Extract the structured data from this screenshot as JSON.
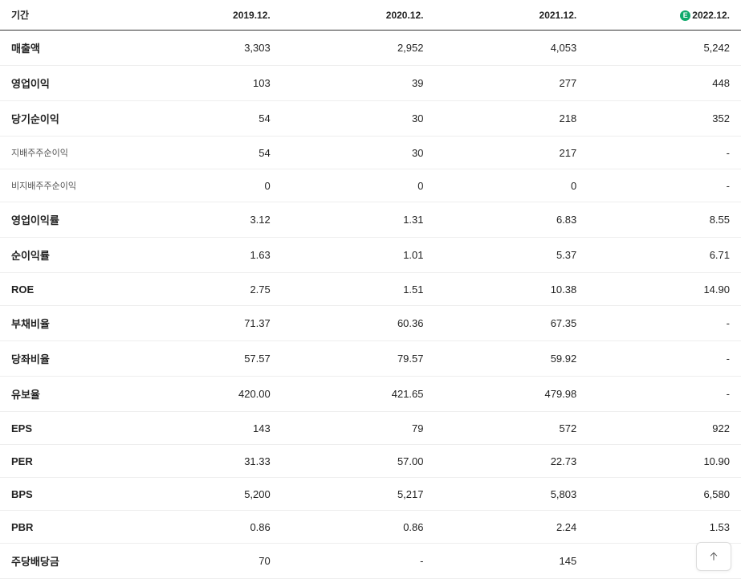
{
  "header": {
    "period_label": "기간",
    "columns": [
      "2019.12.",
      "2020.12.",
      "2021.12.",
      "2022.12."
    ],
    "estimate_index": 3,
    "estimate_badge": "E"
  },
  "rows": [
    {
      "label": "매출액",
      "bold": true,
      "sub": false,
      "cells": [
        "3,303",
        "2,952",
        "4,053",
        "5,242"
      ]
    },
    {
      "label": "영업이익",
      "bold": true,
      "sub": false,
      "cells": [
        "103",
        "39",
        "277",
        "448"
      ]
    },
    {
      "label": "당기순이익",
      "bold": true,
      "sub": false,
      "cells": [
        "54",
        "30",
        "218",
        "352"
      ]
    },
    {
      "label": "지배주주순이익",
      "bold": false,
      "sub": true,
      "cells": [
        "54",
        "30",
        "217",
        "-"
      ]
    },
    {
      "label": "비지배주주순이익",
      "bold": false,
      "sub": true,
      "cells": [
        "0",
        "0",
        "0",
        "-"
      ]
    },
    {
      "label": "영업이익률",
      "bold": true,
      "sub": false,
      "cells": [
        "3.12",
        "1.31",
        "6.83",
        "8.55"
      ]
    },
    {
      "label": "순이익률",
      "bold": true,
      "sub": false,
      "cells": [
        "1.63",
        "1.01",
        "5.37",
        "6.71"
      ]
    },
    {
      "label": "ROE",
      "bold": true,
      "sub": false,
      "cells": [
        "2.75",
        "1.51",
        "10.38",
        "14.90"
      ]
    },
    {
      "label": "부채비율",
      "bold": true,
      "sub": false,
      "cells": [
        "71.37",
        "60.36",
        "67.35",
        "-"
      ]
    },
    {
      "label": "당좌비율",
      "bold": true,
      "sub": false,
      "cells": [
        "57.57",
        "79.57",
        "59.92",
        "-"
      ]
    },
    {
      "label": "유보율",
      "bold": true,
      "sub": false,
      "cells": [
        "420.00",
        "421.65",
        "479.98",
        "-"
      ]
    },
    {
      "label": "EPS",
      "bold": true,
      "sub": false,
      "cells": [
        "143",
        "79",
        "572",
        "922"
      ]
    },
    {
      "label": "PER",
      "bold": true,
      "sub": false,
      "cells": [
        "31.33",
        "57.00",
        "22.73",
        "10.90"
      ]
    },
    {
      "label": "BPS",
      "bold": true,
      "sub": false,
      "cells": [
        "5,200",
        "5,217",
        "5,803",
        "6,580"
      ]
    },
    {
      "label": "PBR",
      "bold": true,
      "sub": false,
      "cells": [
        "0.86",
        "0.86",
        "2.24",
        "1.53"
      ]
    },
    {
      "label": "주당배당금",
      "bold": true,
      "sub": false,
      "cells": [
        "70",
        "-",
        "145",
        ""
      ]
    }
  ]
}
